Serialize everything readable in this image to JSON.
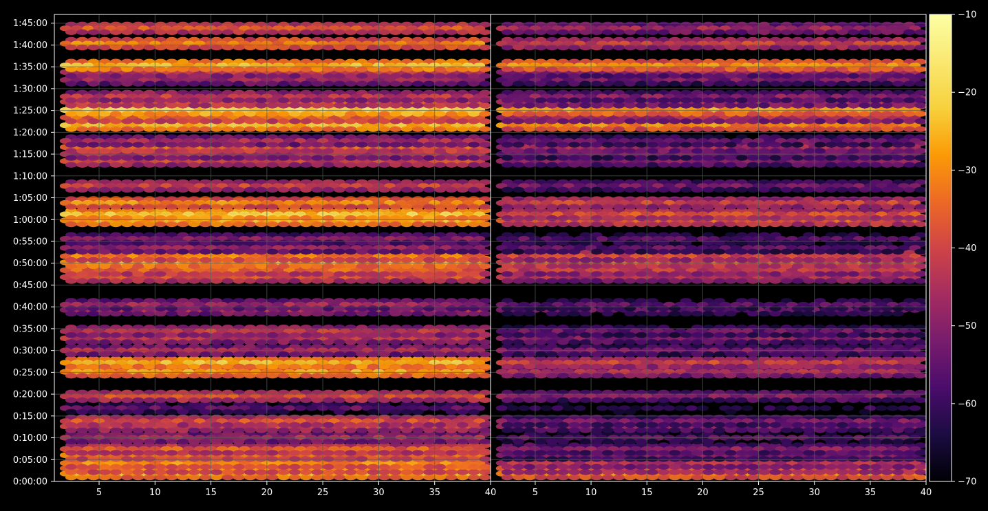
{
  "chart_data": {
    "type": "heatmap",
    "title": "",
    "panels": [
      {
        "name": "",
        "xlim": [
          1,
          40
        ],
        "xticks": [
          5,
          10,
          15,
          20,
          25,
          30,
          35,
          40
        ]
      },
      {
        "name": "",
        "xlim": [
          1,
          40
        ],
        "xticks": [
          5,
          10,
          15,
          20,
          25,
          30,
          35,
          40
        ]
      }
    ],
    "ylim_seconds": [
      0,
      6420
    ],
    "yticks": [
      "0:00:00",
      "0:05:00",
      "0:10:00",
      "0:15:00",
      "0:20:00",
      "0:25:00",
      "0:30:00",
      "0:35:00",
      "0:40:00",
      "0:45:00",
      "0:50:00",
      "0:55:00",
      "1:00:00",
      "1:05:00",
      "1:10:00",
      "1:15:00",
      "1:20:00",
      "1:25:00",
      "1:30:00",
      "1:35:00",
      "1:40:00",
      "1:45:00"
    ],
    "colorbar": {
      "min": -70,
      "max": -10,
      "ticks": [
        "−10",
        "−20",
        "−30",
        "−40",
        "−50",
        "−60",
        "−70"
      ],
      "colormap": "inferno"
    },
    "grid": true,
    "bands_minutes": [
      {
        "t": 1.8,
        "left": -26,
        "right": -30
      },
      {
        "t": 3.0,
        "left": -32,
        "right": -40
      },
      {
        "t": 4.2,
        "left": -30,
        "right": -44
      },
      {
        "t": 6.0,
        "left": -33,
        "right": -52
      },
      {
        "t": 7.4,
        "left": -36,
        "right": -50
      },
      {
        "t": 10.0,
        "left": -45,
        "right": -56
      },
      {
        "t": 12.6,
        "left": -40,
        "right": -50
      },
      {
        "t": 13.8,
        "left": -38,
        "right": -52
      },
      {
        "t": 16.8,
        "left": -55,
        "right": -62
      },
      {
        "t": 19.5,
        "left": -38,
        "right": -50
      },
      {
        "t": 25.1,
        "left": -27,
        "right": -44
      },
      {
        "t": 27.2,
        "left": -24,
        "right": -40
      },
      {
        "t": 30.0,
        "left": -45,
        "right": -52
      },
      {
        "t": 32.8,
        "left": -43,
        "right": -50
      },
      {
        "t": 34.4,
        "left": -42,
        "right": -54
      },
      {
        "t": 39.3,
        "left": -45,
        "right": -55
      },
      {
        "t": 40.5,
        "left": -47,
        "right": -56
      },
      {
        "t": 46.8,
        "left": -38,
        "right": -44
      },
      {
        "t": 48.4,
        "left": -35,
        "right": -42
      },
      {
        "t": 50.2,
        "left": -26,
        "right": -36
      },
      {
        "t": 51.6,
        "left": -32,
        "right": -40
      },
      {
        "t": 53.5,
        "left": -48,
        "right": -55
      },
      {
        "t": 55.6,
        "left": -50,
        "right": -56
      },
      {
        "t": 59.8,
        "left": -25,
        "right": -36
      },
      {
        "t": 61.2,
        "left": -22,
        "right": -38
      },
      {
        "t": 63.8,
        "left": -30,
        "right": -40
      },
      {
        "t": 67.7,
        "left": -40,
        "right": -52
      },
      {
        "t": 73.4,
        "left": -40,
        "right": -50
      },
      {
        "t": 75.0,
        "left": -44,
        "right": -53
      },
      {
        "t": 76.6,
        "left": -35,
        "right": -46
      },
      {
        "t": 78.0,
        "left": -46,
        "right": -54
      },
      {
        "t": 81.6,
        "left": -24,
        "right": -30
      },
      {
        "t": 83.4,
        "left": -34,
        "right": -45
      },
      {
        "t": 85.1,
        "left": -20,
        "right": -28
      },
      {
        "t": 87.0,
        "left": -37,
        "right": -46
      },
      {
        "t": 88.2,
        "left": -42,
        "right": -50
      },
      {
        "t": 92.0,
        "left": -47,
        "right": -52
      },
      {
        "t": 93.8,
        "left": -42,
        "right": -48
      },
      {
        "t": 95.3,
        "left": -24,
        "right": -29
      },
      {
        "t": 100.3,
        "left": -31,
        "right": -40
      },
      {
        "t": 103.8,
        "left": -36,
        "right": -46
      }
    ]
  },
  "theme": {
    "background": "#000000",
    "text": "#ffffff",
    "grid": "#5a5a5a"
  }
}
